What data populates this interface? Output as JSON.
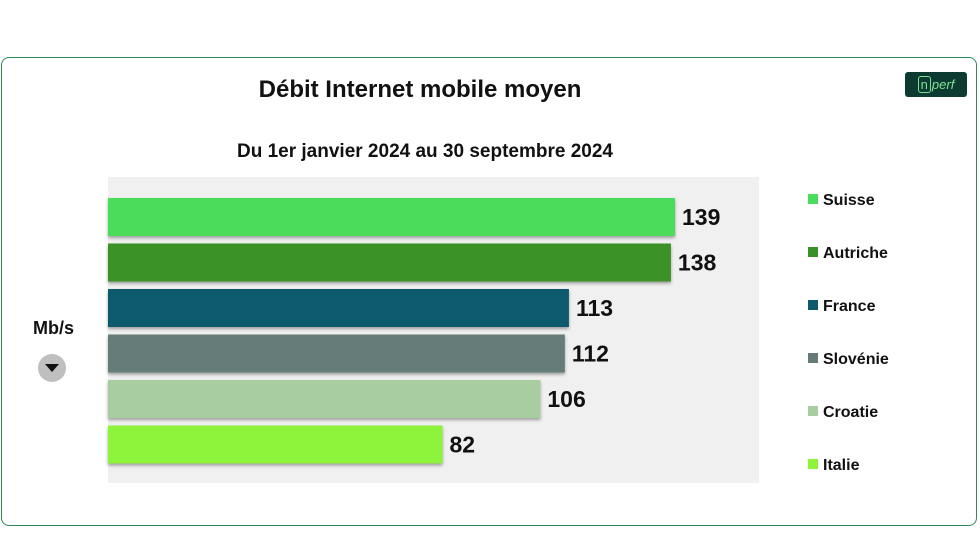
{
  "title": "Débit Internet mobile moyen",
  "subtitle": "Du 1er janvier 2024 au 30 septembre 2024",
  "unit_label": "Mb/s",
  "logo_text": "n",
  "logo_text2": "perf",
  "dropdown_icon": "chevron-down-icon",
  "chart_data": {
    "type": "bar",
    "orientation": "horizontal",
    "title": "Débit Internet mobile moyen",
    "subtitle": "Du 1er janvier 2024 au 30 septembre 2024",
    "ylabel": "Mb/s",
    "xlim": [
      0,
      160
    ],
    "grid": false,
    "legend_position": "right",
    "categories": [
      "Suisse",
      "Autriche",
      "France",
      "Slovénie",
      "Croatie",
      "Italie"
    ],
    "values": [
      139,
      138,
      113,
      112,
      106,
      82
    ],
    "colors": [
      "#4cdc5c",
      "#3a9226",
      "#0d5a6c",
      "#657b78",
      "#a8cda0",
      "#8ef43a"
    ]
  }
}
